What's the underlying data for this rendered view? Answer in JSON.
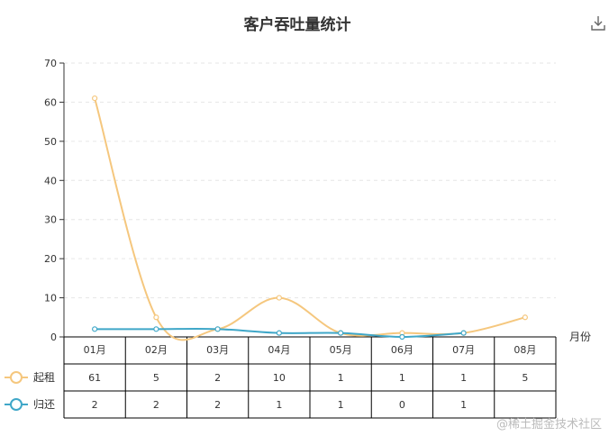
{
  "chart_data": {
    "type": "line",
    "title": "客户吞吐量统计",
    "categories": [
      "01月",
      "02月",
      "03月",
      "04月",
      "05月",
      "06月",
      "07月",
      "08月"
    ],
    "xlabel": "月份",
    "ylabel": "",
    "ylim": [
      0,
      70
    ],
    "yticks": [
      0,
      10,
      20,
      30,
      40,
      50,
      60,
      70
    ],
    "grid": true,
    "smooth": true,
    "legend_position": "bottom-left",
    "series": [
      {
        "name": "起租",
        "color": "#f5c77e",
        "values": [
          61,
          5,
          2,
          10,
          1,
          1,
          1,
          5
        ]
      },
      {
        "name": "归还",
        "color": "#3fa7c8",
        "values": [
          2,
          2,
          2,
          1,
          1,
          0,
          1,
          null
        ]
      }
    ]
  },
  "toolbar": {
    "download_icon": "download-icon"
  },
  "watermark": "@稀土掘金技术社区"
}
